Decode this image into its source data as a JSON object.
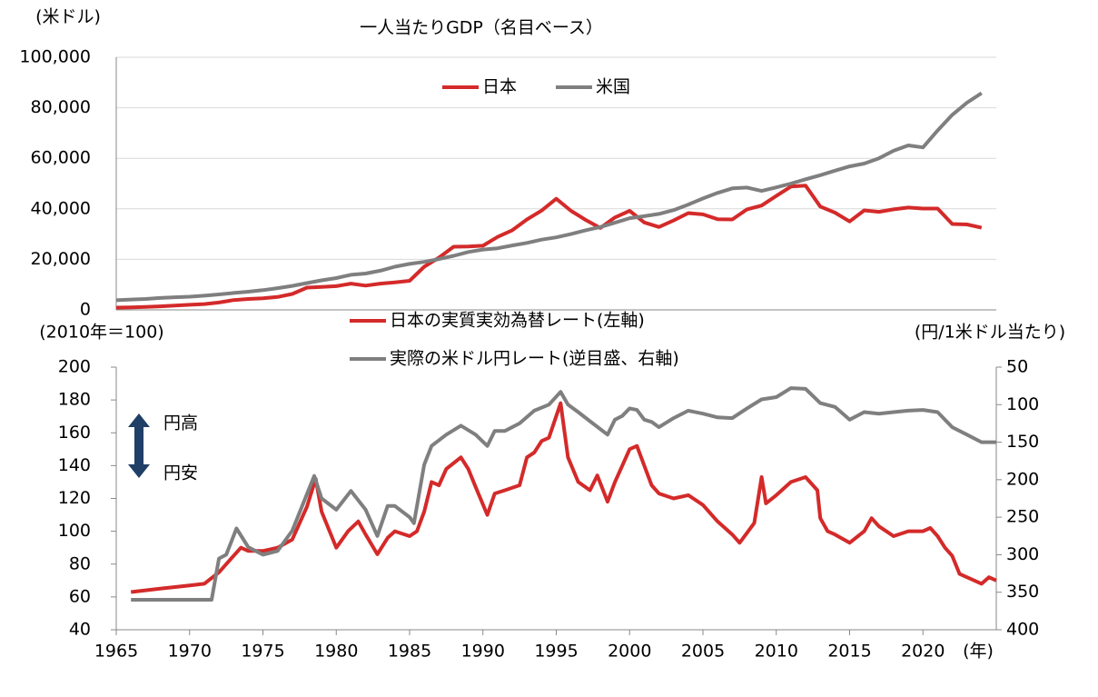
{
  "chart_data": [
    {
      "type": "line",
      "title": "一人当たりGDP（名目ベース）",
      "ylabel": "(米ドル)",
      "x": [
        1965,
        1966,
        1967,
        1968,
        1969,
        1970,
        1971,
        1972,
        1973,
        1974,
        1975,
        1976,
        1977,
        1978,
        1979,
        1980,
        1981,
        1982,
        1983,
        1984,
        1985,
        1986,
        1987,
        1988,
        1989,
        1990,
        1991,
        1992,
        1993,
        1994,
        1995,
        1996,
        1997,
        1998,
        1999,
        2000,
        2001,
        2002,
        2003,
        2004,
        2005,
        2006,
        2007,
        2008,
        2009,
        2010,
        2011,
        2012,
        2013,
        2014,
        2015,
        2016,
        2017,
        2018,
        2019,
        2020,
        2021,
        2022,
        2023,
        2024
      ],
      "series": [
        {
          "name": "日本",
          "color": "#d42a2a",
          "values": [
            900,
            1000,
            1200,
            1400,
            1700,
            2000,
            2300,
            2900,
            3900,
            4300,
            4600,
            5100,
            6300,
            8800,
            9100,
            9400,
            10400,
            9600,
            10400,
            10900,
            11500,
            17100,
            20700,
            25000,
            25100,
            25400,
            28900,
            31500,
            35800,
            39300,
            44000,
            39200,
            35600,
            32400,
            36600,
            39200,
            34600,
            32800,
            35400,
            38300,
            37800,
            35900,
            35800,
            39800,
            41300,
            45100,
            48800,
            49200,
            40900,
            38500,
            35000,
            39400,
            38800,
            39800,
            40500,
            40100,
            40100,
            34000,
            33800,
            32500
          ]
        },
        {
          "name": "米国",
          "color": "#7f7f7f",
          "values": [
            3800,
            4100,
            4300,
            4700,
            5000,
            5200,
            5600,
            6100,
            6700,
            7200,
            7800,
            8600,
            9500,
            10600,
            11700,
            12600,
            13900,
            14400,
            15500,
            17100,
            18200,
            19000,
            20100,
            21400,
            22900,
            23900,
            24400,
            25500,
            26500,
            27800,
            28700,
            30000,
            31500,
            32800,
            34500,
            36300,
            37100,
            38000,
            39500,
            41700,
            44100,
            46300,
            48100,
            48400,
            47100,
            48500,
            50000,
            51700,
            53300,
            55100,
            56800,
            57900,
            60000,
            63000,
            65100,
            64300,
            71000,
            77200,
            82000,
            85800
          ]
        }
      ],
      "xlim": [
        1965,
        2025
      ],
      "ylim": [
        0,
        100000
      ],
      "yticks": [
        0,
        {
          "value": 20000,
          "label": "20,000"
        },
        {
          "value": 40000,
          "label": "40,000"
        },
        {
          "value": 60000,
          "label": "60,000"
        },
        {
          "value": 80000,
          "label": "80,000"
        },
        {
          "value": 100000,
          "label": "100,000"
        }
      ],
      "grid": true
    },
    {
      "type": "line",
      "ylabel": "(2010年＝100)",
      "y2label": "(円/1米ドル当たり)",
      "xlabel": "(年)",
      "annotations": [
        "円高",
        "円安"
      ],
      "series": [
        {
          "name": "日本の実質実効為替レート(左軸)",
          "color": "#d42a2a",
          "x": [
            1966,
            1967,
            1968,
            1969,
            1970,
            1971,
            1972,
            1973,
            1973.5,
            1974,
            1975,
            1976,
            1977,
            1978,
            1978.6,
            1979,
            1980,
            1980.8,
            1981.5,
            1982,
            1982.8,
            1983.5,
            1984,
            1985,
            1985.5,
            1986,
            1986.5,
            1987,
            1987.5,
            1988.5,
            1989,
            1989.5,
            1990.3,
            1990.8,
            1991.5,
            1992.5,
            1993,
            1993.5,
            1994,
            1994.5,
            1995.3,
            1995.8,
            1996.5,
            1997.3,
            1997.8,
            1998.5,
            1999,
            1999.5,
            2000,
            2000.5,
            2001,
            2001.5,
            2002,
            2003,
            2004,
            2005,
            2006,
            2007,
            2007.5,
            2008,
            2008.5,
            2009,
            2009.3,
            2010,
            2011,
            2012,
            2012.8,
            2013,
            2013.5,
            2014,
            2015,
            2016,
            2016.5,
            2017,
            2018,
            2019,
            2020,
            2020.5,
            2021,
            2021.5,
            2022,
            2022.5,
            2023,
            2023.5,
            2024,
            2024.5,
            2025
          ],
          "values": [
            63,
            64,
            65,
            66,
            67,
            68,
            75,
            85,
            90,
            88,
            88,
            90,
            95,
            115,
            132,
            112,
            90,
            100,
            106,
            98,
            86,
            96,
            100,
            97,
            100,
            112,
            130,
            128,
            138,
            145,
            138,
            127,
            110,
            123,
            125,
            128,
            145,
            148,
            155,
            157,
            178,
            145,
            130,
            125,
            134,
            118,
            130,
            140,
            150,
            152,
            140,
            128,
            123,
            120,
            122,
            116,
            106,
            98,
            93,
            99,
            105,
            133,
            117,
            122,
            130,
            133,
            125,
            108,
            100,
            98,
            93,
            100,
            108,
            103,
            97,
            100,
            100,
            102,
            97,
            90,
            85,
            74,
            72,
            70,
            68,
            72,
            70
          ]
        },
        {
          "name": "実際の米ドル円レート(逆目盛、右軸)",
          "color": "#7f7f7f",
          "axis": "y2",
          "x": [
            1966,
            1971.5,
            1972,
            1972.5,
            1973.2,
            1974,
            1975,
            1976,
            1977,
            1978.5,
            1979,
            1980,
            1981,
            1982,
            1982.8,
            1983.5,
            1984,
            1985,
            1985.3,
            1986,
            1986.5,
            1987.5,
            1988.5,
            1989.5,
            1990.3,
            1990.8,
            1991.5,
            1992.5,
            1993.5,
            1994.5,
            1995.3,
            1995.8,
            1996.5,
            1997.3,
            1998.5,
            1999,
            1999.5,
            2000,
            2000.5,
            2001,
            2001.5,
            2002,
            2003,
            2004,
            2005,
            2006,
            2007,
            2008,
            2009,
            2010,
            2011,
            2012,
            2013,
            2014,
            2015,
            2016,
            2017,
            2018,
            2019,
            2020,
            2021,
            2022,
            2023,
            2024,
            2025
          ],
          "values": [
            360,
            360,
            305,
            300,
            265,
            290,
            300,
            295,
            268,
            195,
            225,
            240,
            215,
            240,
            275,
            235,
            235,
            250,
            258,
            180,
            155,
            140,
            128,
            140,
            155,
            135,
            135,
            125,
            108,
            100,
            83,
            100,
            110,
            122,
            140,
            120,
            115,
            105,
            107,
            120,
            123,
            130,
            118,
            108,
            112,
            117,
            118,
            105,
            93,
            90,
            78,
            79,
            98,
            103,
            120,
            110,
            112,
            110,
            108,
            107,
            110,
            130,
            140,
            150,
            150
          ]
        }
      ],
      "xlim": [
        1965,
        2025
      ],
      "ylim": [
        40,
        200
      ],
      "y2lim": [
        400,
        50
      ],
      "xticks": [
        1965,
        1970,
        1975,
        1980,
        1985,
        1990,
        1995,
        2000,
        2005,
        2010,
        2015,
        2020
      ],
      "yticks": [
        40,
        60,
        80,
        100,
        120,
        140,
        160,
        180,
        200
      ],
      "y2ticks": [
        50,
        100,
        150,
        200,
        250,
        300,
        350,
        400
      ],
      "grid": false
    }
  ]
}
